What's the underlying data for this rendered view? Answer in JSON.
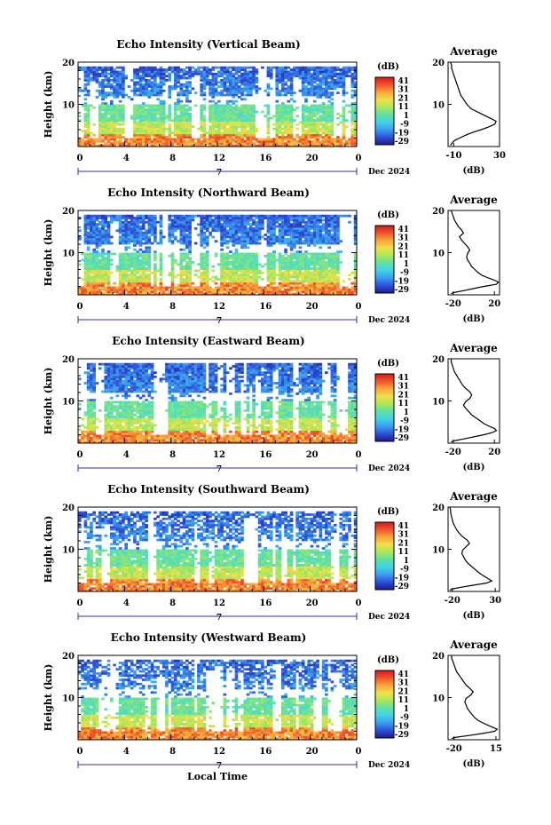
{
  "page": {
    "xlabel": "Local Time"
  },
  "colorbar": {
    "unit": "(dB)",
    "ticks": [
      "41",
      "31",
      "21",
      "11",
      "1",
      "-9",
      "-19",
      "-29"
    ],
    "stops": [
      "#1e1a8c",
      "#2e4fd8",
      "#3b9cf0",
      "#41d2e6",
      "#5ee0a8",
      "#a8e85a",
      "#f1e04a",
      "#f6a73a",
      "#f0552c",
      "#d7191c"
    ]
  },
  "date_label": "Dec 2024",
  "date_tick_label": "7",
  "chart_data": [
    {
      "type": "heatmap",
      "title": "Echo Intensity (Vertical Beam)",
      "ylabel": "Height (km)",
      "x_ticks": [
        "0",
        "4",
        "8",
        "12",
        "16",
        "20",
        "0"
      ],
      "y_ticks": [
        "20",
        "10"
      ],
      "xlim": [
        0,
        24
      ],
      "ylim": [
        0,
        20
      ],
      "avg": {
        "title": "Average",
        "xlabel": "(dB)",
        "x_ticks": [
          "-10",
          "30"
        ],
        "xlim": [
          -15,
          30
        ],
        "y_ticks": [
          "20",
          "10"
        ],
        "x": [
          -13,
          -12,
          -11,
          -9,
          -5,
          -1,
          3,
          8,
          14,
          20,
          26,
          27,
          22,
          16,
          10,
          5,
          2,
          0,
          -2,
          -4,
          -5,
          -6,
          -7,
          -8,
          -9,
          -10,
          -11,
          -12,
          -12,
          -13
        ],
        "y": [
          0.3,
          0.6,
          1.0,
          1.5,
          2,
          2.5,
          3,
          3.5,
          4,
          4.6,
          5.3,
          6,
          6.7,
          7.5,
          8.3,
          9,
          9.8,
          10.6,
          11.4,
          12.2,
          13,
          13.8,
          14.6,
          15.4,
          16.2,
          17,
          17.8,
          18.6,
          19.3,
          20
        ]
      }
    },
    {
      "type": "heatmap",
      "title": "Echo Intensity (Northward Beam)",
      "ylabel": "Height (km)",
      "x_ticks": [
        "0",
        "4",
        "8",
        "12",
        "16",
        "20",
        "0"
      ],
      "y_ticks": [
        "20",
        "10"
      ],
      "xlim": [
        0,
        24
      ],
      "ylim": [
        0,
        20
      ],
      "avg": {
        "title": "Average",
        "xlabel": "(dB)",
        "x_ticks": [
          "-20",
          "20"
        ],
        "xlim": [
          -25,
          25
        ],
        "y_ticks": [
          "20",
          "10"
        ],
        "x": [
          -22,
          -18,
          -10,
          0,
          10,
          22,
          24,
          20,
          14,
          8,
          4,
          1,
          -2,
          -4,
          -6,
          -7,
          -6,
          -4,
          -6,
          -9,
          -12,
          -14,
          -10,
          -12,
          -15,
          -17,
          -19,
          -20,
          -21,
          -22
        ],
        "y": [
          0.3,
          0.6,
          1.0,
          1.5,
          2,
          2.5,
          3,
          3.5,
          4,
          4.6,
          5.3,
          6,
          6.7,
          7.5,
          8.3,
          9,
          9.8,
          10.6,
          11.4,
          12.2,
          13,
          13.8,
          14.6,
          15.4,
          16.2,
          17,
          17.8,
          18.6,
          19.3,
          20
        ]
      }
    },
    {
      "type": "heatmap",
      "title": "Echo Intensity (Eastward Beam)",
      "ylabel": "Height (km)",
      "x_ticks": [
        "0",
        "4",
        "8",
        "12",
        "16",
        "20",
        "0"
      ],
      "y_ticks": [
        "20",
        "10"
      ],
      "xlim": [
        0,
        24
      ],
      "ylim": [
        0,
        20
      ],
      "avg": {
        "title": "Average",
        "xlabel": "(dB)",
        "x_ticks": [
          "-20",
          "20"
        ],
        "xlim": [
          -25,
          25
        ],
        "y_ticks": [
          "20",
          "10"
        ],
        "x": [
          -22,
          -18,
          -10,
          0,
          10,
          18,
          22,
          20,
          15,
          10,
          6,
          2,
          -2,
          -5,
          -8,
          -10,
          -8,
          -4,
          -2,
          -4,
          -8,
          -11,
          -13,
          -15,
          -17,
          -19,
          -20,
          -21,
          -22,
          -22
        ],
        "y": [
          0.3,
          0.6,
          1.0,
          1.5,
          2,
          2.5,
          3,
          3.5,
          4,
          4.6,
          5.3,
          6,
          6.7,
          7.5,
          8.3,
          9,
          9.8,
          10.6,
          11.4,
          12.2,
          13,
          13.8,
          14.6,
          15.4,
          16.2,
          17,
          17.8,
          18.6,
          19.3,
          20
        ]
      }
    },
    {
      "type": "heatmap",
      "title": "Echo Intensity (Southward Beam)",
      "ylabel": "Height (km)",
      "x_ticks": [
        "0",
        "4",
        "8",
        "12",
        "16",
        "20",
        "0"
      ],
      "y_ticks": [
        "20",
        "10"
      ],
      "xlim": [
        0,
        24
      ],
      "ylim": [
        0,
        20
      ],
      "avg": {
        "title": "Average",
        "xlabel": "(dB)",
        "x_ticks": [
          "-20",
          "30"
        ],
        "xlim": [
          -25,
          35
        ],
        "y_ticks": [
          "20",
          "10"
        ],
        "x": [
          -23,
          -20,
          -10,
          5,
          20,
          26,
          22,
          18,
          14,
          10,
          6,
          2,
          -2,
          -5,
          -7,
          -9,
          -8,
          -4,
          0,
          -3,
          -8,
          -12,
          -15,
          -17,
          -19,
          -20,
          -21,
          -22,
          -22,
          -23
        ],
        "y": [
          0.3,
          0.6,
          1.0,
          1.5,
          2,
          2.5,
          3,
          3.5,
          4,
          4.6,
          5.3,
          6,
          6.7,
          7.5,
          8.3,
          9,
          9.8,
          10.6,
          11.4,
          12.2,
          13,
          13.8,
          14.6,
          15.4,
          16.2,
          17,
          17.8,
          18.6,
          19.3,
          20
        ]
      }
    },
    {
      "type": "heatmap",
      "title": "Echo Intensity (Westward Beam)",
      "ylabel": "Height (km)",
      "x_ticks": [
        "0",
        "4",
        "8",
        "12",
        "16",
        "20",
        "0"
      ],
      "y_ticks": [
        "20",
        "10"
      ],
      "xlim": [
        0,
        24
      ],
      "ylim": [
        0,
        20
      ],
      "avg": {
        "title": "Average",
        "xlabel": "(dB)",
        "x_ticks": [
          "-20",
          "15"
        ],
        "xlim": [
          -25,
          18
        ],
        "y_ticks": [
          "20",
          "10"
        ],
        "x": [
          -22,
          -18,
          -8,
          4,
          14,
          16,
          12,
          8,
          4,
          0,
          -3,
          -5,
          -7,
          -9,
          -10,
          -11,
          -10,
          -6,
          -4,
          -7,
          -10,
          -12,
          -14,
          -16,
          -18,
          -19,
          -20,
          -21,
          -22,
          -22
        ],
        "y": [
          0.3,
          0.6,
          1.0,
          1.5,
          2,
          2.5,
          3,
          3.5,
          4,
          4.6,
          5.3,
          6,
          6.7,
          7.5,
          8.3,
          9,
          9.8,
          10.6,
          11.4,
          12.2,
          13,
          13.8,
          14.6,
          15.4,
          16.2,
          17,
          17.8,
          18.6,
          19.3,
          20
        ]
      }
    }
  ]
}
